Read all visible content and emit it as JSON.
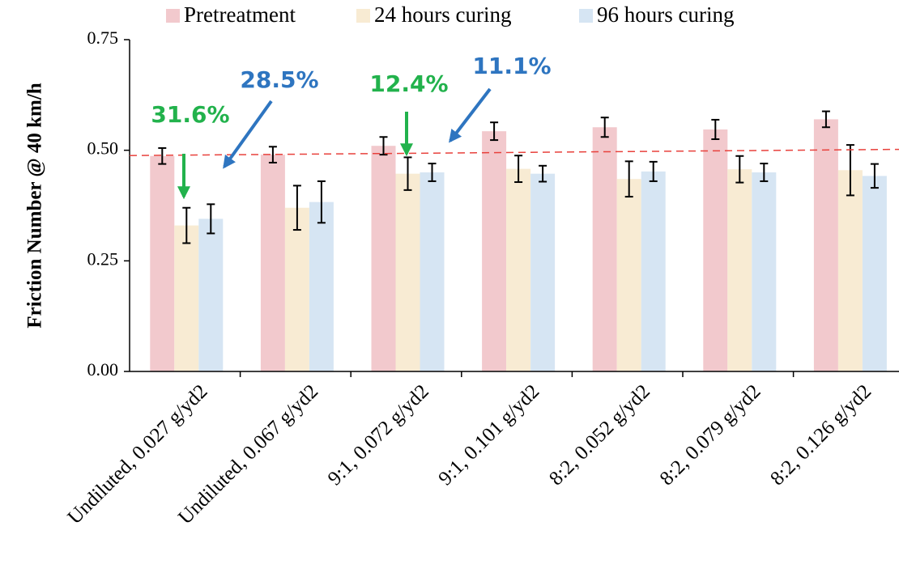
{
  "chart_data": {
    "type": "bar",
    "y_label": "Friction Number @ 40 km/h",
    "categories": [
      "Undiluted, 0.027 g/yd2",
      "Undiluted, 0.067 g/yd2",
      "9:1, 0.072 g/yd2",
      "9:1, 0.101 g/yd2",
      "8:2, 0.052 g/yd2",
      "8:2, 0.079 g/yd2",
      "8:2, 0.126 g/yd2"
    ],
    "series": [
      {
        "name": "Pretreatment",
        "color": "#f2c9cd",
        "values": [
          0.487,
          0.49,
          0.51,
          0.543,
          0.552,
          0.547,
          0.57
        ],
        "errors": [
          0.018,
          0.018,
          0.02,
          0.02,
          0.022,
          0.022,
          0.018
        ]
      },
      {
        "name": "24 hours curing",
        "color": "#f8ebd3",
        "values": [
          0.33,
          0.37,
          0.447,
          0.458,
          0.435,
          0.457,
          0.455
        ],
        "errors": [
          0.04,
          0.05,
          0.037,
          0.03,
          0.04,
          0.03,
          0.057
        ]
      },
      {
        "name": "96 hours curing",
        "color": "#d6e5f3",
        "values": [
          0.345,
          0.383,
          0.45,
          0.447,
          0.452,
          0.45,
          0.442
        ],
        "errors": [
          0.033,
          0.047,
          0.02,
          0.018,
          0.022,
          0.02,
          0.027
        ]
      }
    ],
    "reference_line": {
      "color": "#e8413c",
      "start": 0.488,
      "end": 0.502
    },
    "annotations": [
      {
        "text": "31.6%",
        "color": "#22b24c"
      },
      {
        "text": "28.5%",
        "color": "#2e75c0"
      },
      {
        "text": "12.4%",
        "color": "#22b24c"
      },
      {
        "text": "11.1%",
        "color": "#2e75c0"
      }
    ],
    "ylim": [
      0,
      0.75
    ],
    "yticks": [
      {
        "value": 0,
        "label": "0.00"
      },
      {
        "value": 0.25,
        "label": "0.25"
      },
      {
        "value": 0.5,
        "label": "0.50"
      },
      {
        "value": 0.75,
        "label": "0.75"
      }
    ],
    "legend": "top"
  }
}
